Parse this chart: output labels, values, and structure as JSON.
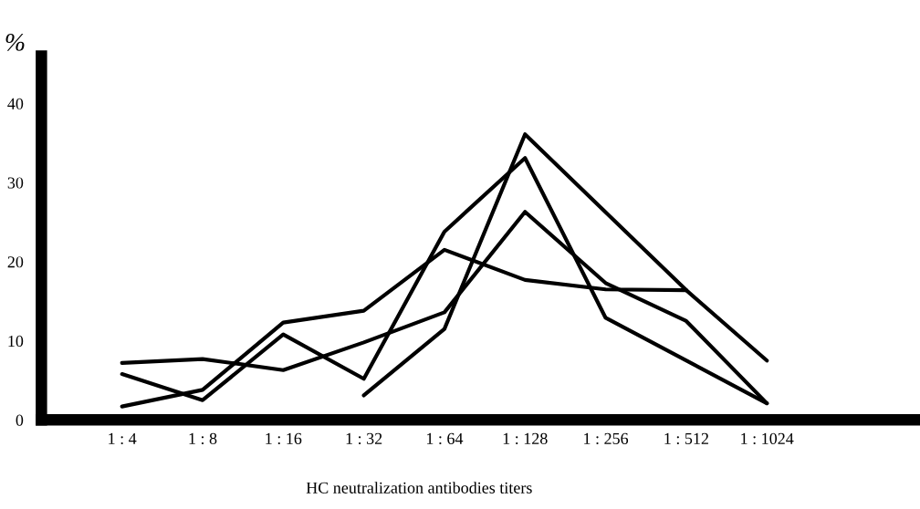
{
  "chart_data": {
    "type": "line",
    "ylabel": "%",
    "xlabel": "HC neutralization antibodies titers",
    "categories": [
      "1 : 4",
      "1 : 8",
      "1 : 16",
      "1 : 32",
      "1 : 64",
      "1 : 128",
      "1 : 256",
      "1 : 512",
      "1 : 1024"
    ],
    "ylim": [
      0,
      46
    ],
    "yticks": [
      0,
      10,
      20,
      30,
      40
    ],
    "grid": false,
    "legend": false,
    "marker": "none",
    "line_style": "solid",
    "series": [
      {
        "color": "#000000",
        "values": [
          7.2,
          7.7,
          6.3,
          9.8,
          13.6,
          26.3,
          17.3,
          12.5,
          2.1
        ]
      },
      {
        "color": "#000000",
        "x": [
          "1 : 4",
          "1 : 8",
          "1 : 16",
          "1 : 32",
          "1 : 64",
          "1 : 128",
          "1 : 256",
          "1 : 1024"
        ],
        "values": [
          5.8,
          2.5,
          10.8,
          5.2,
          23.8,
          33.1,
          12.9,
          2.1
        ]
      },
      {
        "color": "#000000",
        "x": [
          "1 : 4",
          "1 : 8",
          "1 : 16",
          "1 : 32",
          "1 : 64",
          "1 : 128",
          "1 : 256",
          "1 : 512"
        ],
        "values": [
          1.7,
          3.8,
          12.3,
          13.8,
          21.5,
          17.7,
          16.5,
          16.4
        ]
      },
      {
        "color": "#000000",
        "x": [
          "1 : 32",
          "1 : 64",
          "1 : 128",
          "1 : 512",
          "1 : 1024"
        ],
        "values": [
          3.1,
          11.5,
          36.1,
          16.4,
          7.5
        ]
      }
    ]
  }
}
